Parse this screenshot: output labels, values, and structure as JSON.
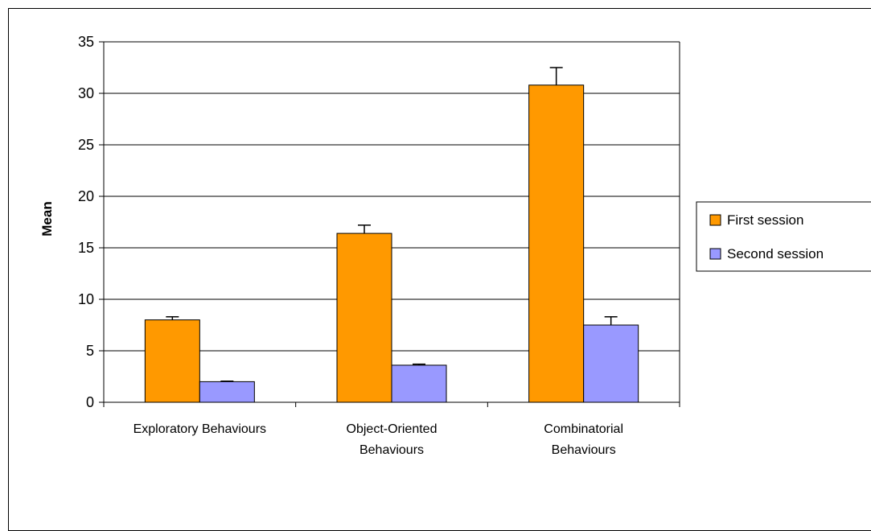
{
  "chart_data": {
    "type": "bar",
    "title": "",
    "xlabel": "",
    "ylabel": "Mean",
    "ylim": [
      0,
      35
    ],
    "yticks": [
      0,
      5,
      10,
      15,
      20,
      25,
      30,
      35
    ],
    "grid": true,
    "legend_position": "right",
    "categories": [
      [
        "Exploratory Behaviours"
      ],
      [
        "Object-Oriented",
        "Behaviours"
      ],
      [
        "Combinatorial",
        "Behaviours"
      ]
    ],
    "series": [
      {
        "name": "First session",
        "color": "#FF9900",
        "values": [
          8.0,
          16.4,
          30.8
        ],
        "error": [
          0.3,
          0.8,
          1.7
        ]
      },
      {
        "name": "Second session",
        "color": "#9999FF",
        "values": [
          2.0,
          3.6,
          7.5
        ],
        "error": [
          0.05,
          0.1,
          0.8
        ]
      }
    ]
  }
}
